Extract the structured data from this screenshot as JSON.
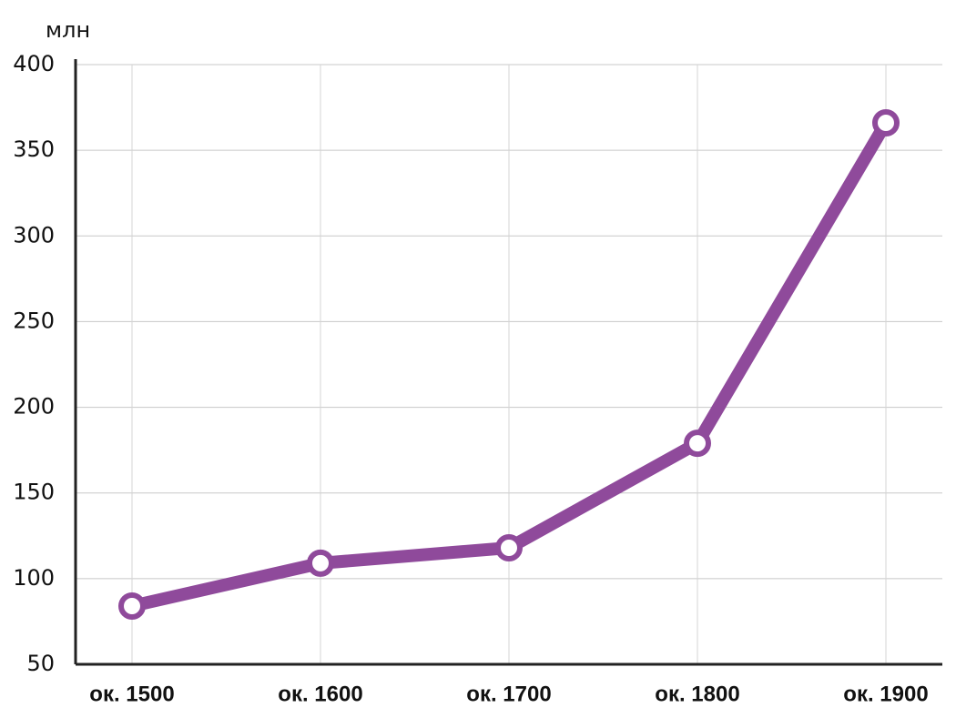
{
  "chart_data": {
    "type": "line",
    "y_label": "млн",
    "categories": [
      "ок. 1500",
      "ок. 1600",
      "ок. 1700",
      "ок. 1800",
      "ок. 1900"
    ],
    "values": [
      84,
      109,
      118,
      179,
      366
    ],
    "color": "#8f4a9b",
    "ylim": [
      50,
      400
    ],
    "yticks": [
      50,
      100,
      150,
      200,
      250,
      300,
      350,
      400
    ],
    "grid": true
  }
}
